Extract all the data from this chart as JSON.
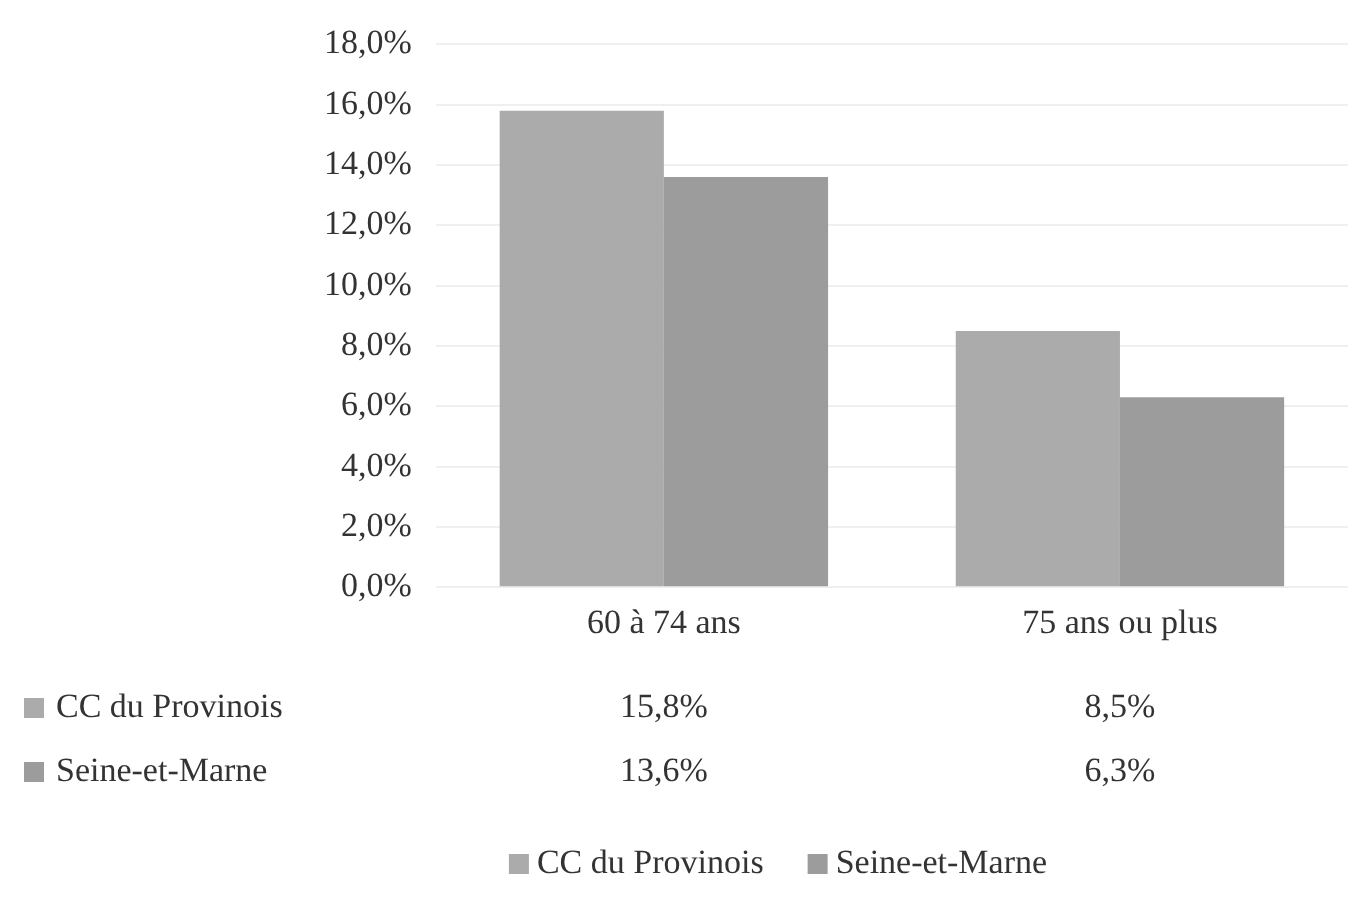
{
  "chart_data": {
    "type": "bar",
    "categories": [
      "60 à 74 ans",
      "75 ans ou plus"
    ],
    "series": [
      {
        "name": "CC du Provinois",
        "color": "#ababab",
        "values": [
          15.8,
          8.5
        ],
        "value_labels": [
          "15,8%",
          "8,5%"
        ]
      },
      {
        "name": "Seine-et-Marne",
        "color": "#9c9c9c",
        "values": [
          13.6,
          6.3
        ],
        "value_labels": [
          "13,6%",
          "6,3%"
        ]
      }
    ],
    "ylim": [
      0,
      18
    ],
    "yticks": [
      {
        "value": 0,
        "label": "0,0%"
      },
      {
        "value": 2,
        "label": "2,0%"
      },
      {
        "value": 4,
        "label": "4,0%"
      },
      {
        "value": 6,
        "label": "6,0%"
      },
      {
        "value": 8,
        "label": "8,0%"
      },
      {
        "value": 10,
        "label": "10,0%"
      },
      {
        "value": 12,
        "label": "12,0%"
      },
      {
        "value": 14,
        "label": "14,0%"
      },
      {
        "value": 16,
        "label": "16,0%"
      },
      {
        "value": 18,
        "label": "18,0%"
      }
    ],
    "grid": "y",
    "legend": "bottom"
  }
}
